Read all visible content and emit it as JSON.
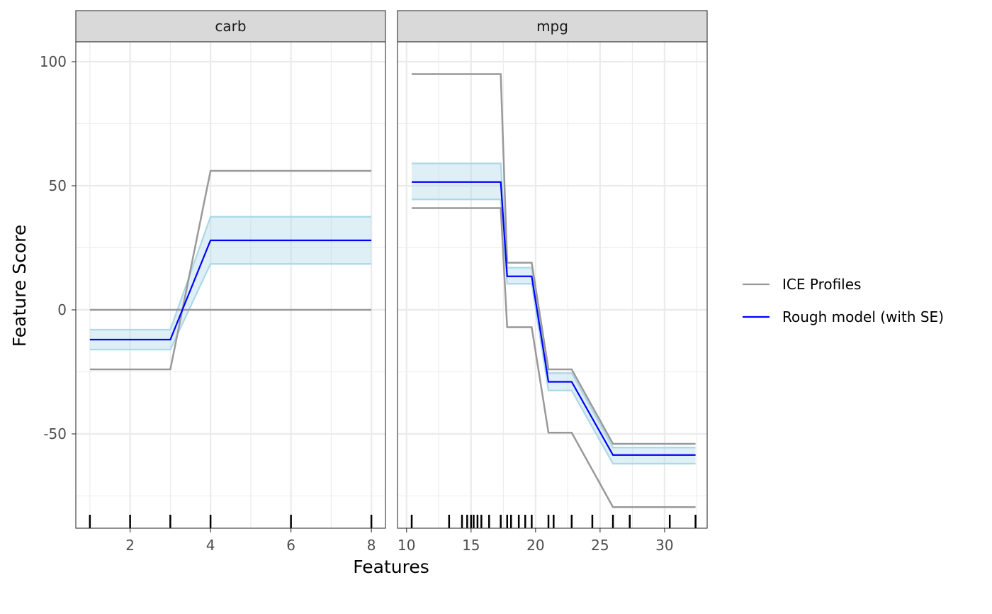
{
  "chart_data": {
    "type": "line",
    "xlabel": "Features",
    "ylabel": "Feature Score",
    "ylim": [
      -88,
      108
    ],
    "y_ticks": [
      -50,
      0,
      50,
      100
    ],
    "legend": {
      "position": "right",
      "entries": [
        {
          "label": "ICE Profiles",
          "color": "#999999"
        },
        {
          "label": "Rough model (with SE)",
          "color": "#0000ff"
        }
      ]
    },
    "colors": {
      "ice": "#999999",
      "mean": "#0000ff",
      "ribbon_fill": "#add8e6",
      "ribbon_edge": "#add8e6",
      "strip_bg": "#d9d9d9",
      "grid": "#ebebeb",
      "panel_border": "#333333"
    },
    "panels": [
      {
        "strip": "carb",
        "xlim": [
          0.65,
          8.35
        ],
        "x_ticks": [
          2,
          4,
          6,
          8
        ],
        "x_minor": [
          1,
          3,
          5,
          7
        ],
        "rug": [
          1,
          2,
          3,
          4,
          6,
          8
        ],
        "ice": [
          {
            "x": [
              1,
              3,
              4,
              8
            ],
            "y": [
              -24,
              -24,
              56,
              56
            ]
          },
          {
            "x": [
              1,
              3,
              4,
              8
            ],
            "y": [
              0,
              0,
              0,
              0
            ]
          }
        ],
        "mean": {
          "x": [
            1,
            3,
            4,
            8
          ],
          "y": [
            -12,
            -12,
            28,
            28
          ]
        },
        "upper": {
          "x": [
            1,
            3,
            4,
            8
          ],
          "y": [
            -8,
            -8,
            37.5,
            37.5
          ]
        },
        "lower": {
          "x": [
            1,
            3,
            4,
            8
          ],
          "y": [
            -16,
            -16,
            18.5,
            18.5
          ]
        }
      },
      {
        "strip": "mpg",
        "xlim": [
          9.3,
          33.3
        ],
        "x_ticks": [
          10,
          15,
          20,
          25,
          30
        ],
        "x_minor": [
          12.5,
          17.5,
          22.5,
          27.5,
          32.5
        ],
        "rug": [
          10.4,
          13.3,
          14.3,
          14.7,
          15.0,
          15.2,
          15.5,
          15.8,
          16.4,
          17.3,
          17.8,
          18.1,
          18.7,
          19.2,
          19.7,
          21.0,
          21.4,
          22.8,
          24.4,
          26.0,
          27.3,
          30.4,
          32.4
        ],
        "ice": [
          {
            "x": [
              10.4,
              17.3,
              17.8,
              19.7,
              21.0,
              22.8,
              26.0,
              32.4
            ],
            "y": [
              95,
              95,
              19,
              19,
              -24,
              -24,
              -54,
              -54
            ]
          },
          {
            "x": [
              10.4,
              17.3,
              17.8,
              19.7,
              21.0,
              22.8,
              26.0,
              32.4
            ],
            "y": [
              41,
              41,
              -7,
              -7,
              -49.5,
              -49.5,
              -79.5,
              -79.5
            ]
          }
        ],
        "mean": {
          "x": [
            10.4,
            17.3,
            17.8,
            19.7,
            21.0,
            22.8,
            26.0,
            32.4
          ],
          "y": [
            51.5,
            51.5,
            13.5,
            13.5,
            -29,
            -29,
            -58.5,
            -58.5
          ]
        },
        "upper": {
          "x": [
            10.4,
            17.3,
            17.8,
            19.7,
            21.0,
            22.8,
            26.0,
            32.4
          ],
          "y": [
            59,
            59,
            17,
            17,
            -25.5,
            -25.5,
            -55.5,
            -55.5
          ]
        },
        "lower": {
          "x": [
            10.4,
            17.3,
            17.8,
            19.7,
            21.0,
            22.8,
            26.0,
            32.4
          ],
          "y": [
            44.5,
            44.5,
            10.5,
            10.5,
            -32.5,
            -32.5,
            -62,
            -62
          ]
        }
      }
    ]
  }
}
